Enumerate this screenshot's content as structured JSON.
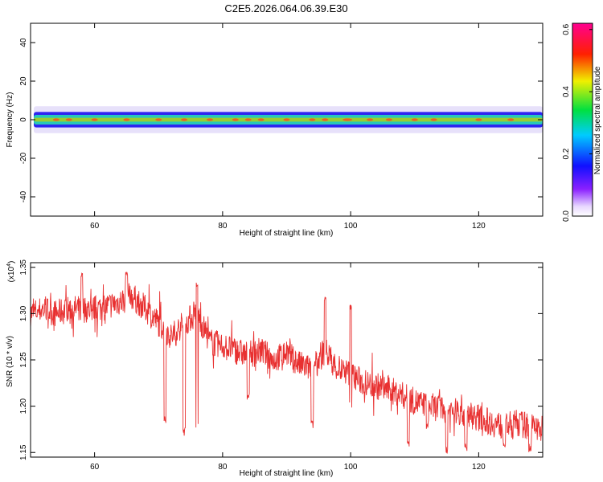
{
  "title": "C2E5.2026.064.06.39.E30",
  "colors": {
    "band_outer": "#bba8f0",
    "band_mid": "#1a10f0",
    "band_inner": "#28c8b8",
    "band_core": "#9ccc30",
    "hot_spot": "#ff4020",
    "snr_line": "#e83030"
  },
  "chart_data": [
    {
      "type": "heatmap",
      "xlabel": "Height of straight line (km)",
      "ylabel": "Frequency (Hz)",
      "xlim": [
        50,
        130
      ],
      "ylim": [
        -50,
        50
      ],
      "xticks": [
        60,
        80,
        100,
        120
      ],
      "yticks": [
        40,
        20,
        0,
        -20,
        -40
      ],
      "band_x_start": 50.5,
      "band_half_width_hz": [
        1,
        2.5,
        4,
        7
      ],
      "hot_spots_x": [
        54,
        56,
        60,
        65,
        70,
        74,
        78,
        82,
        84,
        86,
        90,
        94,
        96,
        99.5,
        103,
        106,
        110,
        113,
        120,
        125
      ],
      "colorbar": {
        "label": "Normalized spectral amplitude",
        "range": [
          0.0,
          0.62
        ],
        "ticks": [
          "0.0",
          "0.2",
          "0.4",
          "0.6"
        ],
        "scheme": "rainbow (white → violet → blue → cyan → green → yellow → red → magenta)"
      }
    },
    {
      "type": "line",
      "xlabel": "Height of straight line (km)",
      "ylabel": "SNR (10 * v/v)",
      "y_multiplier_label": "(x10",
      "y_multiplier_exp": "4",
      "xlim": [
        50,
        130
      ],
      "ylim": [
        1.145,
        1.355
      ],
      "xticks": [
        60,
        80,
        100,
        120
      ],
      "yticks": [
        "1.15",
        "1.20",
        "1.25",
        "1.30",
        "1.35"
      ],
      "series": [
        {
          "x": [
            50,
            52,
            54,
            56,
            58,
            60,
            62,
            64,
            66,
            68,
            70,
            72,
            74,
            76,
            78,
            80,
            82,
            84,
            86,
            88,
            90,
            92,
            94,
            96,
            98,
            100,
            102,
            104,
            106,
            108,
            110,
            112,
            114,
            116,
            118,
            120,
            122,
            124,
            126,
            128,
            130
          ],
          "y": [
            1.3,
            1.305,
            1.3,
            1.305,
            1.305,
            1.305,
            1.308,
            1.313,
            1.318,
            1.305,
            1.29,
            1.275,
            1.29,
            1.3,
            1.27,
            1.265,
            1.26,
            1.255,
            1.26,
            1.25,
            1.258,
            1.245,
            1.24,
            1.26,
            1.24,
            1.235,
            1.225,
            1.222,
            1.218,
            1.212,
            1.205,
            1.2,
            1.198,
            1.195,
            1.192,
            1.188,
            1.182,
            1.178,
            1.182,
            1.178,
            1.175
          ],
          "dips": [
            [
              71,
              1.18
            ],
            [
              74,
              1.168
            ],
            [
              76,
              1.172
            ],
            [
              84,
              1.205
            ],
            [
              94,
              1.175
            ],
            [
              100,
              1.195
            ],
            [
              109,
              1.155
            ],
            [
              112,
              1.175
            ],
            [
              115,
              1.148
            ],
            [
              118,
              1.15
            ],
            [
              124,
              1.155
            ],
            [
              128,
              1.15
            ]
          ],
          "peaks": [
            [
              58,
              1.345
            ],
            [
              65,
              1.348
            ],
            [
              76,
              1.335
            ],
            [
              96,
              1.32
            ],
            [
              100,
              1.31
            ]
          ]
        }
      ]
    }
  ]
}
